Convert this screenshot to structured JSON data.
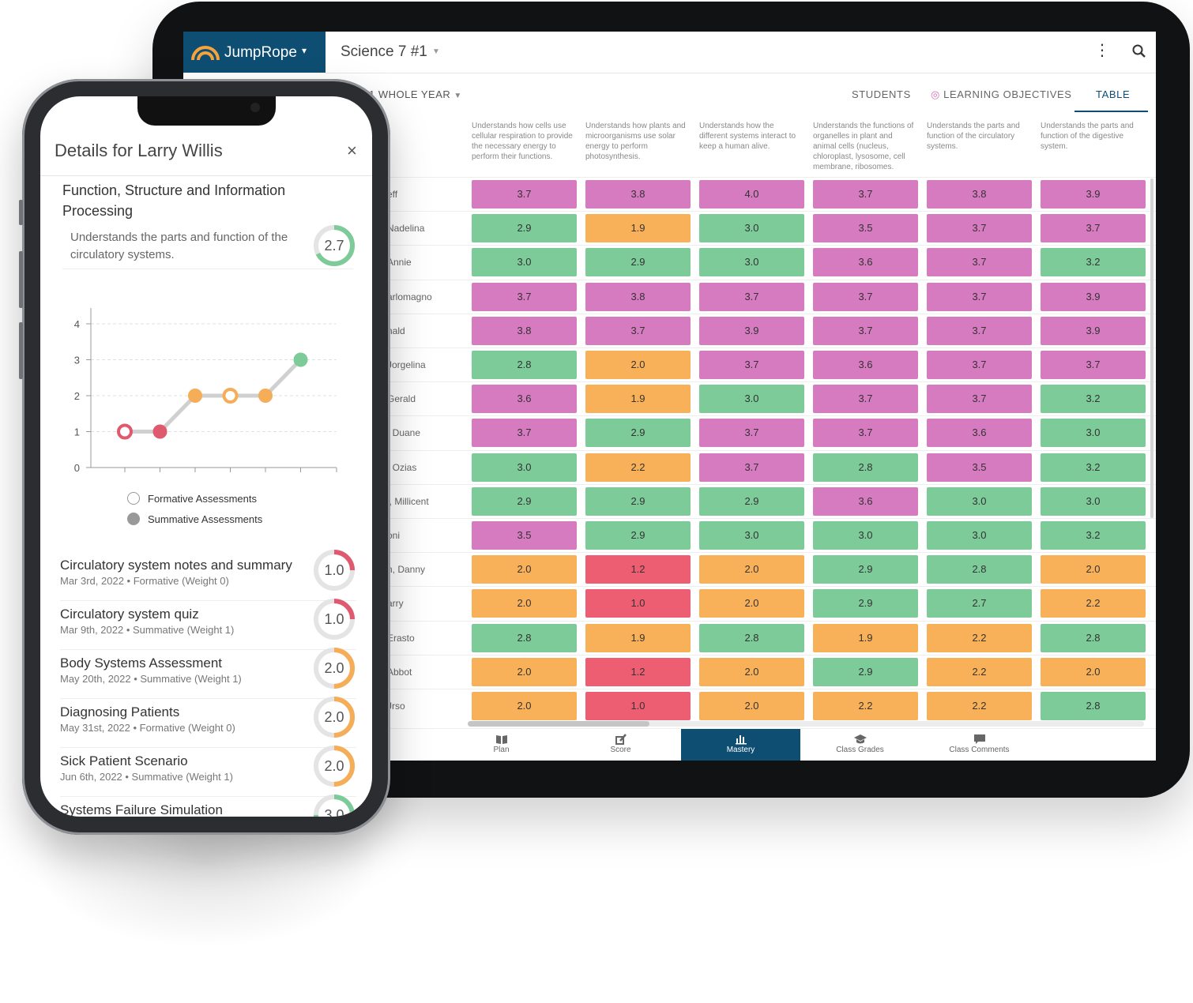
{
  "tablet": {
    "brand_name": "JumpRope",
    "course_title": "Science 7 #1",
    "period_label": "1 WHOLE YEAR",
    "tabs": [
      "STUDENTS",
      "LEARNING OBJECTIVES",
      "TABLE"
    ],
    "active_tab": "TABLE",
    "objective_headers": [
      "Understands how cells use cellular respiration to provide the necessary energy to perform their functions.",
      "Understands how plants and microorganisms use solar energy to perform photosynthesis.",
      "Understands how the different systems interact to keep a human alive.",
      "Understands the functions of organelles in plant and animal cells (nucleus, chloroplast, lysosome, cell membrane, ribosomes.",
      "Understands the parts and function of the circulatory systems.",
      "Understands the parts and function of the digestive system."
    ],
    "student_names": [
      "eff",
      "Nadelina",
      "Annie",
      "arlomagno",
      "nald",
      "Jorgelina",
      "Gerald",
      ", Duane",
      ", Ozias",
      "l, Millicent",
      "oni",
      "n, Danny",
      "arry",
      "Erasto",
      "Abbot",
      "Jrso"
    ],
    "scores": [
      [
        "3.7",
        "3.8",
        "4.0",
        "3.7",
        "3.8",
        "3.9"
      ],
      [
        "2.9",
        "1.9",
        "3.0",
        "3.5",
        "3.7",
        "3.7"
      ],
      [
        "3.0",
        "2.9",
        "3.0",
        "3.6",
        "3.7",
        "3.2"
      ],
      [
        "3.7",
        "3.8",
        "3.7",
        "3.7",
        "3.7",
        "3.9"
      ],
      [
        "3.8",
        "3.7",
        "3.9",
        "3.7",
        "3.7",
        "3.9"
      ],
      [
        "2.8",
        "2.0",
        "3.7",
        "3.6",
        "3.7",
        "3.7"
      ],
      [
        "3.6",
        "1.9",
        "3.0",
        "3.7",
        "3.7",
        "3.2"
      ],
      [
        "3.7",
        "2.9",
        "3.7",
        "3.7",
        "3.6",
        "3.0"
      ],
      [
        "3.0",
        "2.2",
        "3.7",
        "2.8",
        "3.5",
        "3.2"
      ],
      [
        "2.9",
        "2.9",
        "2.9",
        "3.6",
        "3.0",
        "3.0"
      ],
      [
        "3.5",
        "2.9",
        "3.0",
        "3.0",
        "3.0",
        "3.2"
      ],
      [
        "2.0",
        "1.2",
        "2.0",
        "2.9",
        "2.8",
        "2.0"
      ],
      [
        "2.0",
        "1.0",
        "2.0",
        "2.9",
        "2.7",
        "2.2"
      ],
      [
        "2.8",
        "1.9",
        "2.8",
        "1.9",
        "2.2",
        "2.8"
      ],
      [
        "2.0",
        "1.2",
        "2.0",
        "2.9",
        "2.2",
        "2.0"
      ],
      [
        "2.0",
        "1.0",
        "2.0",
        "2.2",
        "2.2",
        "2.8"
      ]
    ],
    "color_levels": {
      "pink": "#d67bbf",
      "green": "#7dcb98",
      "orange": "#f8b158",
      "red": "#ee5e72"
    },
    "bottom_nav": [
      {
        "label": "Plan",
        "icon": "book-icon"
      },
      {
        "label": "Score",
        "icon": "pencil-square-icon"
      },
      {
        "label": "Mastery",
        "icon": "bar-chart-icon"
      },
      {
        "label": "Class Grades",
        "icon": "graduation-cap-icon"
      },
      {
        "label": "Class Comments",
        "icon": "comment-icon"
      }
    ],
    "active_nav": "Mastery"
  },
  "phone": {
    "title": "Details for Larry Willis",
    "close_label": "×",
    "standard_title": "Function, Structure and Information Processing",
    "objective_text": "Understands the parts and function of the circulatory systems.",
    "objective_score": "2.7",
    "objective_score_value": 2.7,
    "legend": [
      "Formative Assessments",
      "Summative Assessments"
    ],
    "assessments": [
      {
        "name": "Circulatory system notes and summary",
        "meta": "Mar 3rd, 2022 • Formative (Weight 0)",
        "score": "1.0",
        "value": 1.0
      },
      {
        "name": "Circulatory system quiz",
        "meta": "Mar 9th, 2022 • Summative (Weight 1)",
        "score": "1.0",
        "value": 1.0
      },
      {
        "name": "Body Systems Assessment",
        "meta": "May 20th, 2022 • Summative (Weight 1)",
        "score": "2.0",
        "value": 2.0
      },
      {
        "name": "Diagnosing Patients",
        "meta": "May 31st, 2022 • Formative (Weight 0)",
        "score": "2.0",
        "value": 2.0
      },
      {
        "name": "Sick Patient Scenario",
        "meta": "Jun 6th, 2022 • Summative (Weight 1)",
        "score": "2.0",
        "value": 2.0
      },
      {
        "name": "Systems Failure Simulation",
        "meta": "",
        "score": "3.0",
        "value": 3.0
      }
    ]
  },
  "chart_data": {
    "type": "line",
    "title": "",
    "xlabel": "",
    "ylabel": "",
    "ylim": [
      0,
      4
    ],
    "yticks": [
      "0",
      "1",
      "2",
      "3",
      "4"
    ],
    "grid": true,
    "legend": "bottom",
    "series": [
      {
        "name": "Formative Assessments",
        "kind": "formative",
        "points": [
          {
            "x": 1,
            "y": 1.0
          },
          {
            "x": 4,
            "y": 2.0
          }
        ]
      },
      {
        "name": "Summative Assessments",
        "kind": "summative",
        "points": [
          {
            "x": 2,
            "y": 1.0
          },
          {
            "x": 3,
            "y": 2.0
          },
          {
            "x": 5,
            "y": 2.0
          },
          {
            "x": 6,
            "y": 3.0
          }
        ]
      }
    ],
    "sequence": [
      1.0,
      1.0,
      2.0,
      2.0,
      2.0,
      3.0
    ],
    "point_colors": [
      "#e05a6f",
      "#e05a6f",
      "#f5ad58",
      "#f5ad58",
      "#f5ad58",
      "#7dcb98"
    ],
    "point_kinds": [
      "formative",
      "summative",
      "summative",
      "formative",
      "summative",
      "summative"
    ]
  }
}
